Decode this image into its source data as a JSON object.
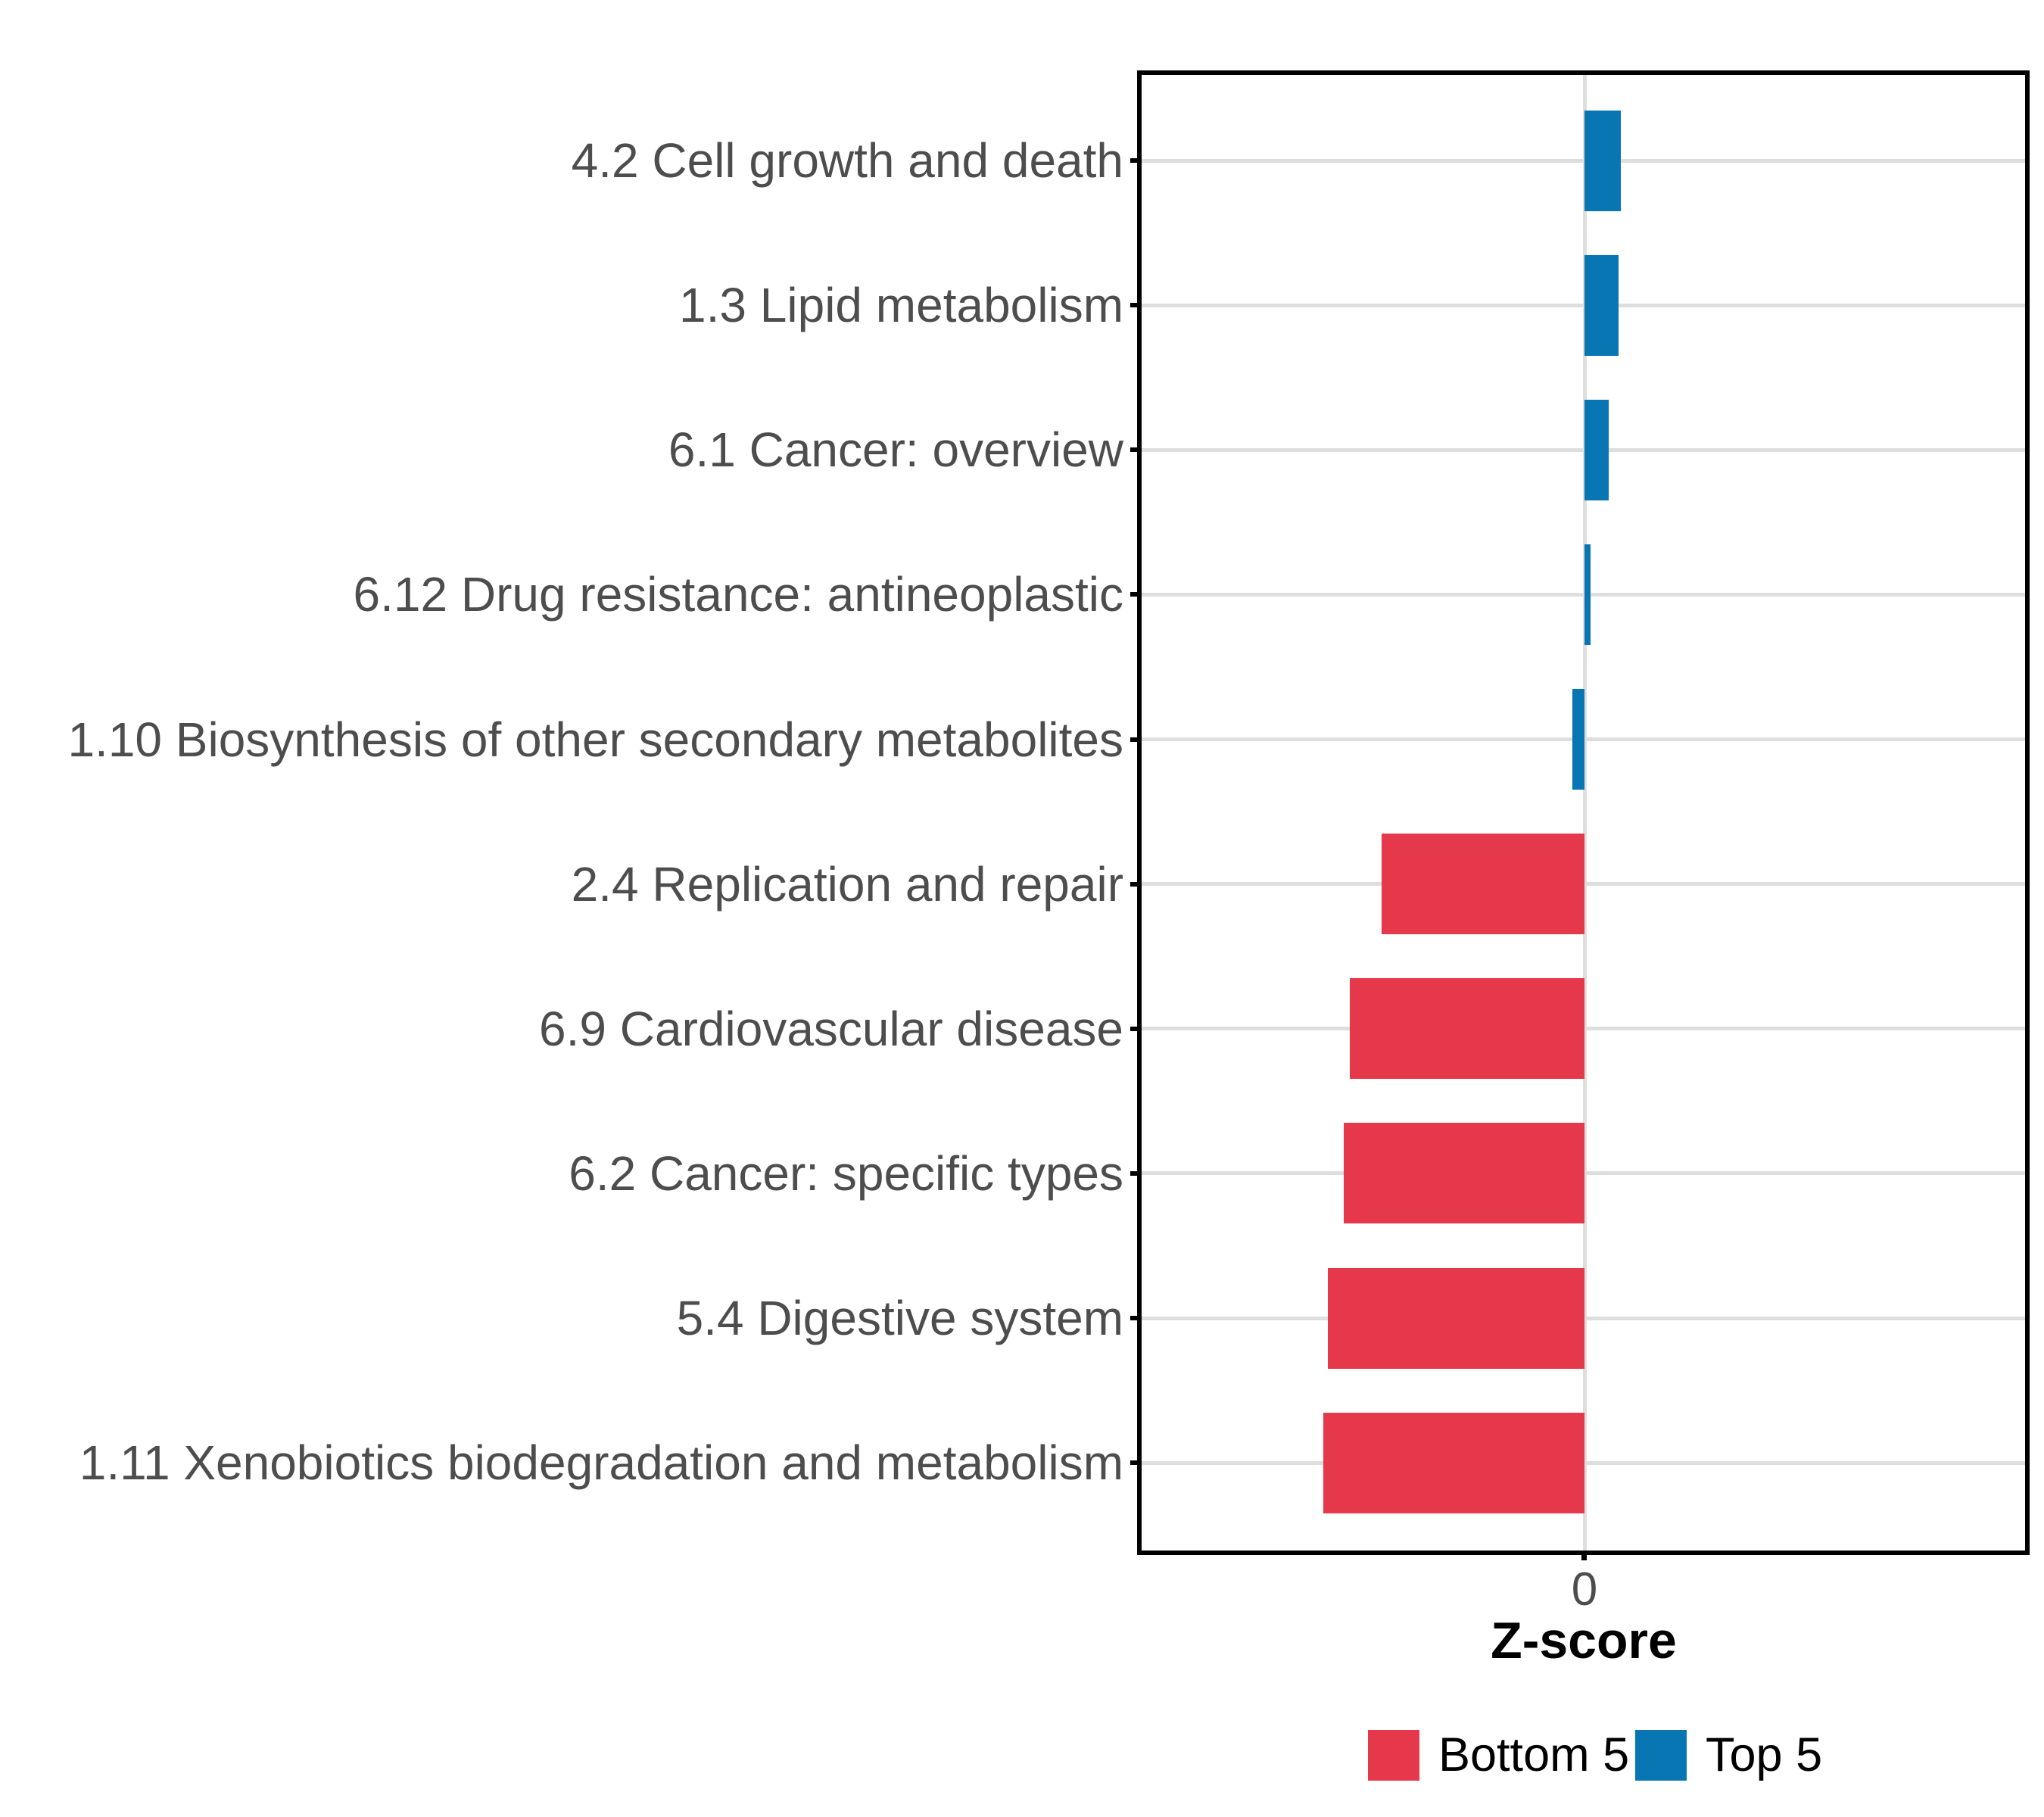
{
  "chart_data": {
    "type": "bar",
    "orientation": "horizontal",
    "title": "",
    "xlabel": "Z-score",
    "ylabel": "",
    "xlim": [
      -2.2,
      2.2
    ],
    "x_ticks": [
      0
    ],
    "x_tick_labels": [
      "0"
    ],
    "grid": "major-gridlines-on-white-panel",
    "legend_position": "bottom-center",
    "categories": [
      "4.2 Cell growth and death",
      "1.3 Lipid metabolism",
      "6.1 Cancer: overview",
      "6.12 Drug resistance: antineoplastic",
      "1.10 Biosynthesis of other secondary metabolites",
      "2.4 Replication and repair",
      "6.9 Cardiovascular disease",
      "6.2 Cancer: specific types",
      "5.4 Digestive system",
      "1.11 Xenobiotics biodegradation and metabolism"
    ],
    "values": [
      0.18,
      0.17,
      0.12,
      0.03,
      -0.06,
      -1.01,
      -1.17,
      -1.2,
      -1.28,
      -1.3
    ],
    "groups": [
      "Top 5",
      "Top 5",
      "Top 5",
      "Top 5",
      "Top 5",
      "Bottom 5",
      "Bottom 5",
      "Bottom 5",
      "Bottom 5",
      "Bottom 5"
    ],
    "series_colors": {
      "Bottom 5": "#E5384A",
      "Top 5": "#0776B3"
    }
  },
  "axis": {
    "x_tick_label": "0",
    "x_title": "Z-score"
  },
  "legend": {
    "items": [
      {
        "label": "Bottom 5",
        "color": "#E5384A"
      },
      {
        "label": "Top 5",
        "color": "#0776B3"
      }
    ]
  },
  "colors": {
    "bottom5_red": "#E5384A",
    "top5_blue": "#0776B3",
    "gridline": "#DEDEDE",
    "axis_text": "#4D4D4D",
    "panel_border": "#000000",
    "background": "#FFFFFF"
  }
}
